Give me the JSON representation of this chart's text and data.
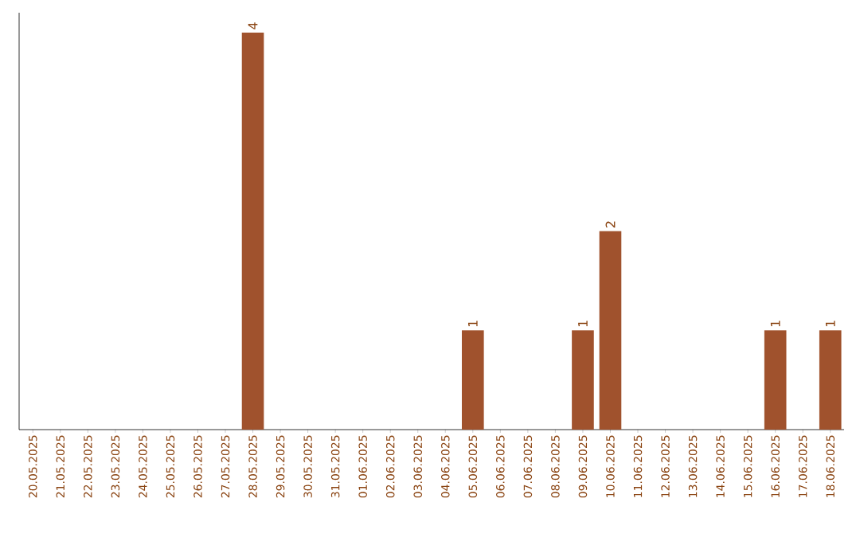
{
  "chart_data": {
    "type": "bar",
    "color": "#a0522d",
    "value_labels": [
      null,
      null,
      null,
      null,
      null,
      null,
      null,
      null,
      "4",
      null,
      null,
      null,
      null,
      null,
      null,
      null,
      "1",
      null,
      null,
      null,
      "1",
      "2",
      null,
      null,
      null,
      null,
      null,
      "1",
      null,
      "1"
    ],
    "categories": [
      "20.05.2025",
      "21.05.2025",
      "22.05.2025",
      "23.05.2025",
      "24.05.2025",
      "25.05.2025",
      "26.05.2025",
      "27.05.2025",
      "28.05.2025",
      "29.05.2025",
      "30.05.2025",
      "31.05.2025",
      "01.06.2025",
      "02.06.2025",
      "03.06.2025",
      "04.06.2025",
      "05.06.2025",
      "06.06.2025",
      "07.06.2025",
      "08.06.2025",
      "09.06.2025",
      "10.06.2025",
      "11.06.2025",
      "12.06.2025",
      "13.06.2025",
      "14.06.2025",
      "15.06.2025",
      "16.06.2025",
      "17.06.2025",
      "18.06.2025"
    ],
    "values": [
      0,
      0,
      0,
      0,
      0,
      0,
      0,
      0,
      4,
      0,
      0,
      0,
      0,
      0,
      0,
      0,
      1,
      0,
      0,
      0,
      1,
      2,
      0,
      0,
      0,
      0,
      0,
      1,
      0,
      1
    ]
  }
}
